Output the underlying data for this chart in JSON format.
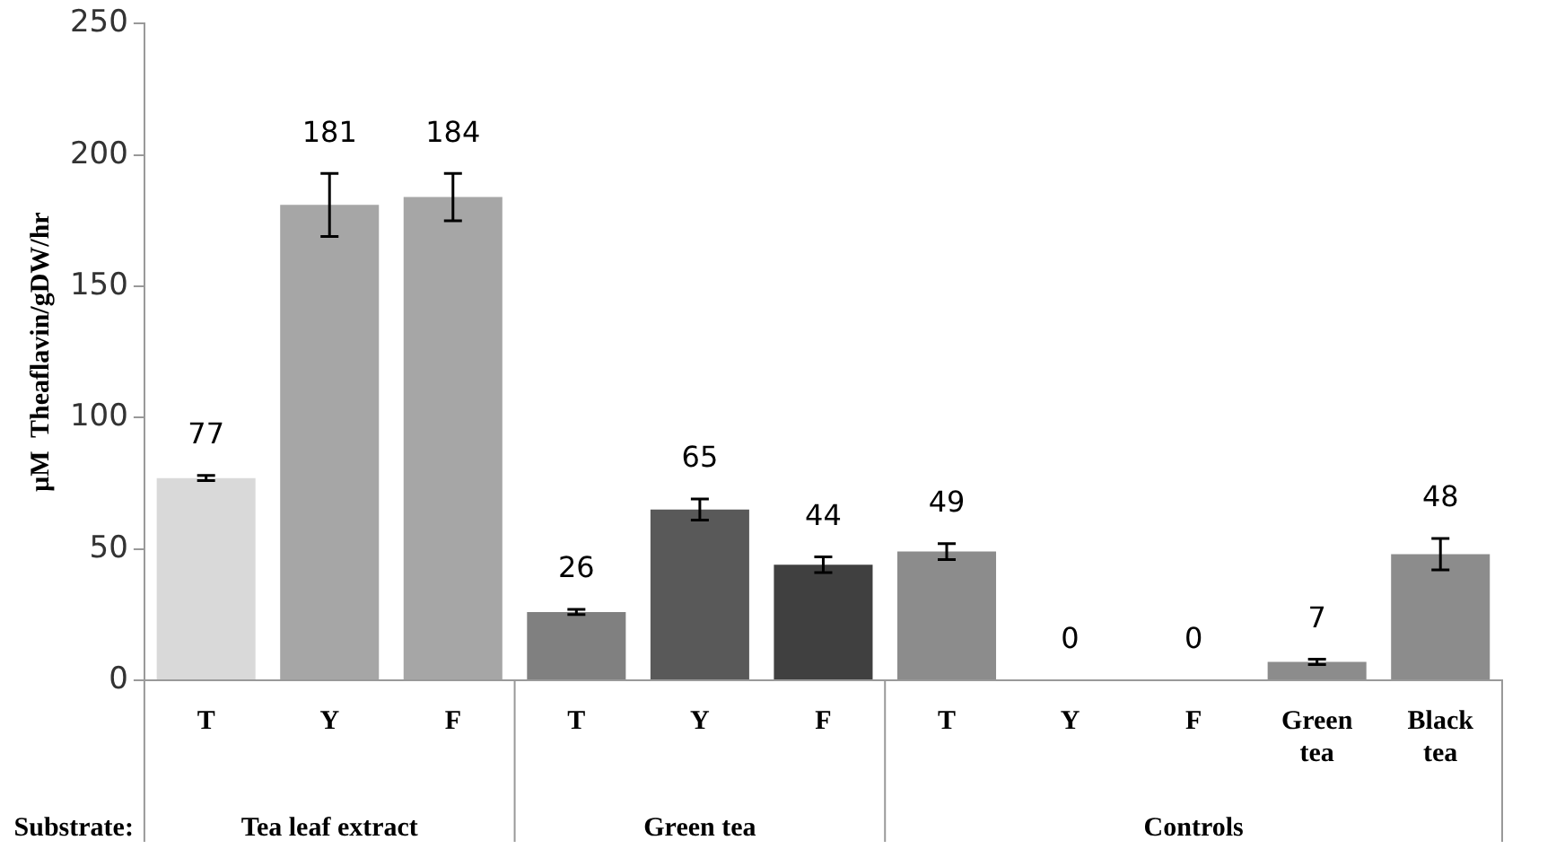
{
  "chart_data": {
    "type": "bar",
    "categories": [
      "T",
      "Y",
      "F",
      "T",
      "Y",
      "F",
      "T",
      "Y",
      "F",
      "Green tea",
      "Black tea"
    ],
    "values": [
      77,
      181,
      184,
      26,
      65,
      44,
      49,
      0,
      0,
      7,
      48
    ],
    "errors": [
      1,
      12,
      9,
      1,
      4,
      3,
      3,
      null,
      null,
      1,
      6
    ],
    "colors": [
      "#d9d9d9",
      "#a6a6a6",
      "#a6a6a6",
      "#808080",
      "#595959",
      "#404040",
      "#8c8c8c",
      "#8c8c8c",
      "#8c8c8c",
      "#8c8c8c",
      "#8c8c8c"
    ],
    "ylabel": "µM  Theaflavin/gDW/hr",
    "ylim": [
      0,
      250
    ],
    "yticks": [
      0,
      50,
      100,
      150,
      200,
      250
    ],
    "data_labels": true,
    "grid": false,
    "legend": false,
    "annotations": [
      "Substrate:",
      "Tea leaf extract",
      "Green tea",
      "Controls"
    ]
  }
}
